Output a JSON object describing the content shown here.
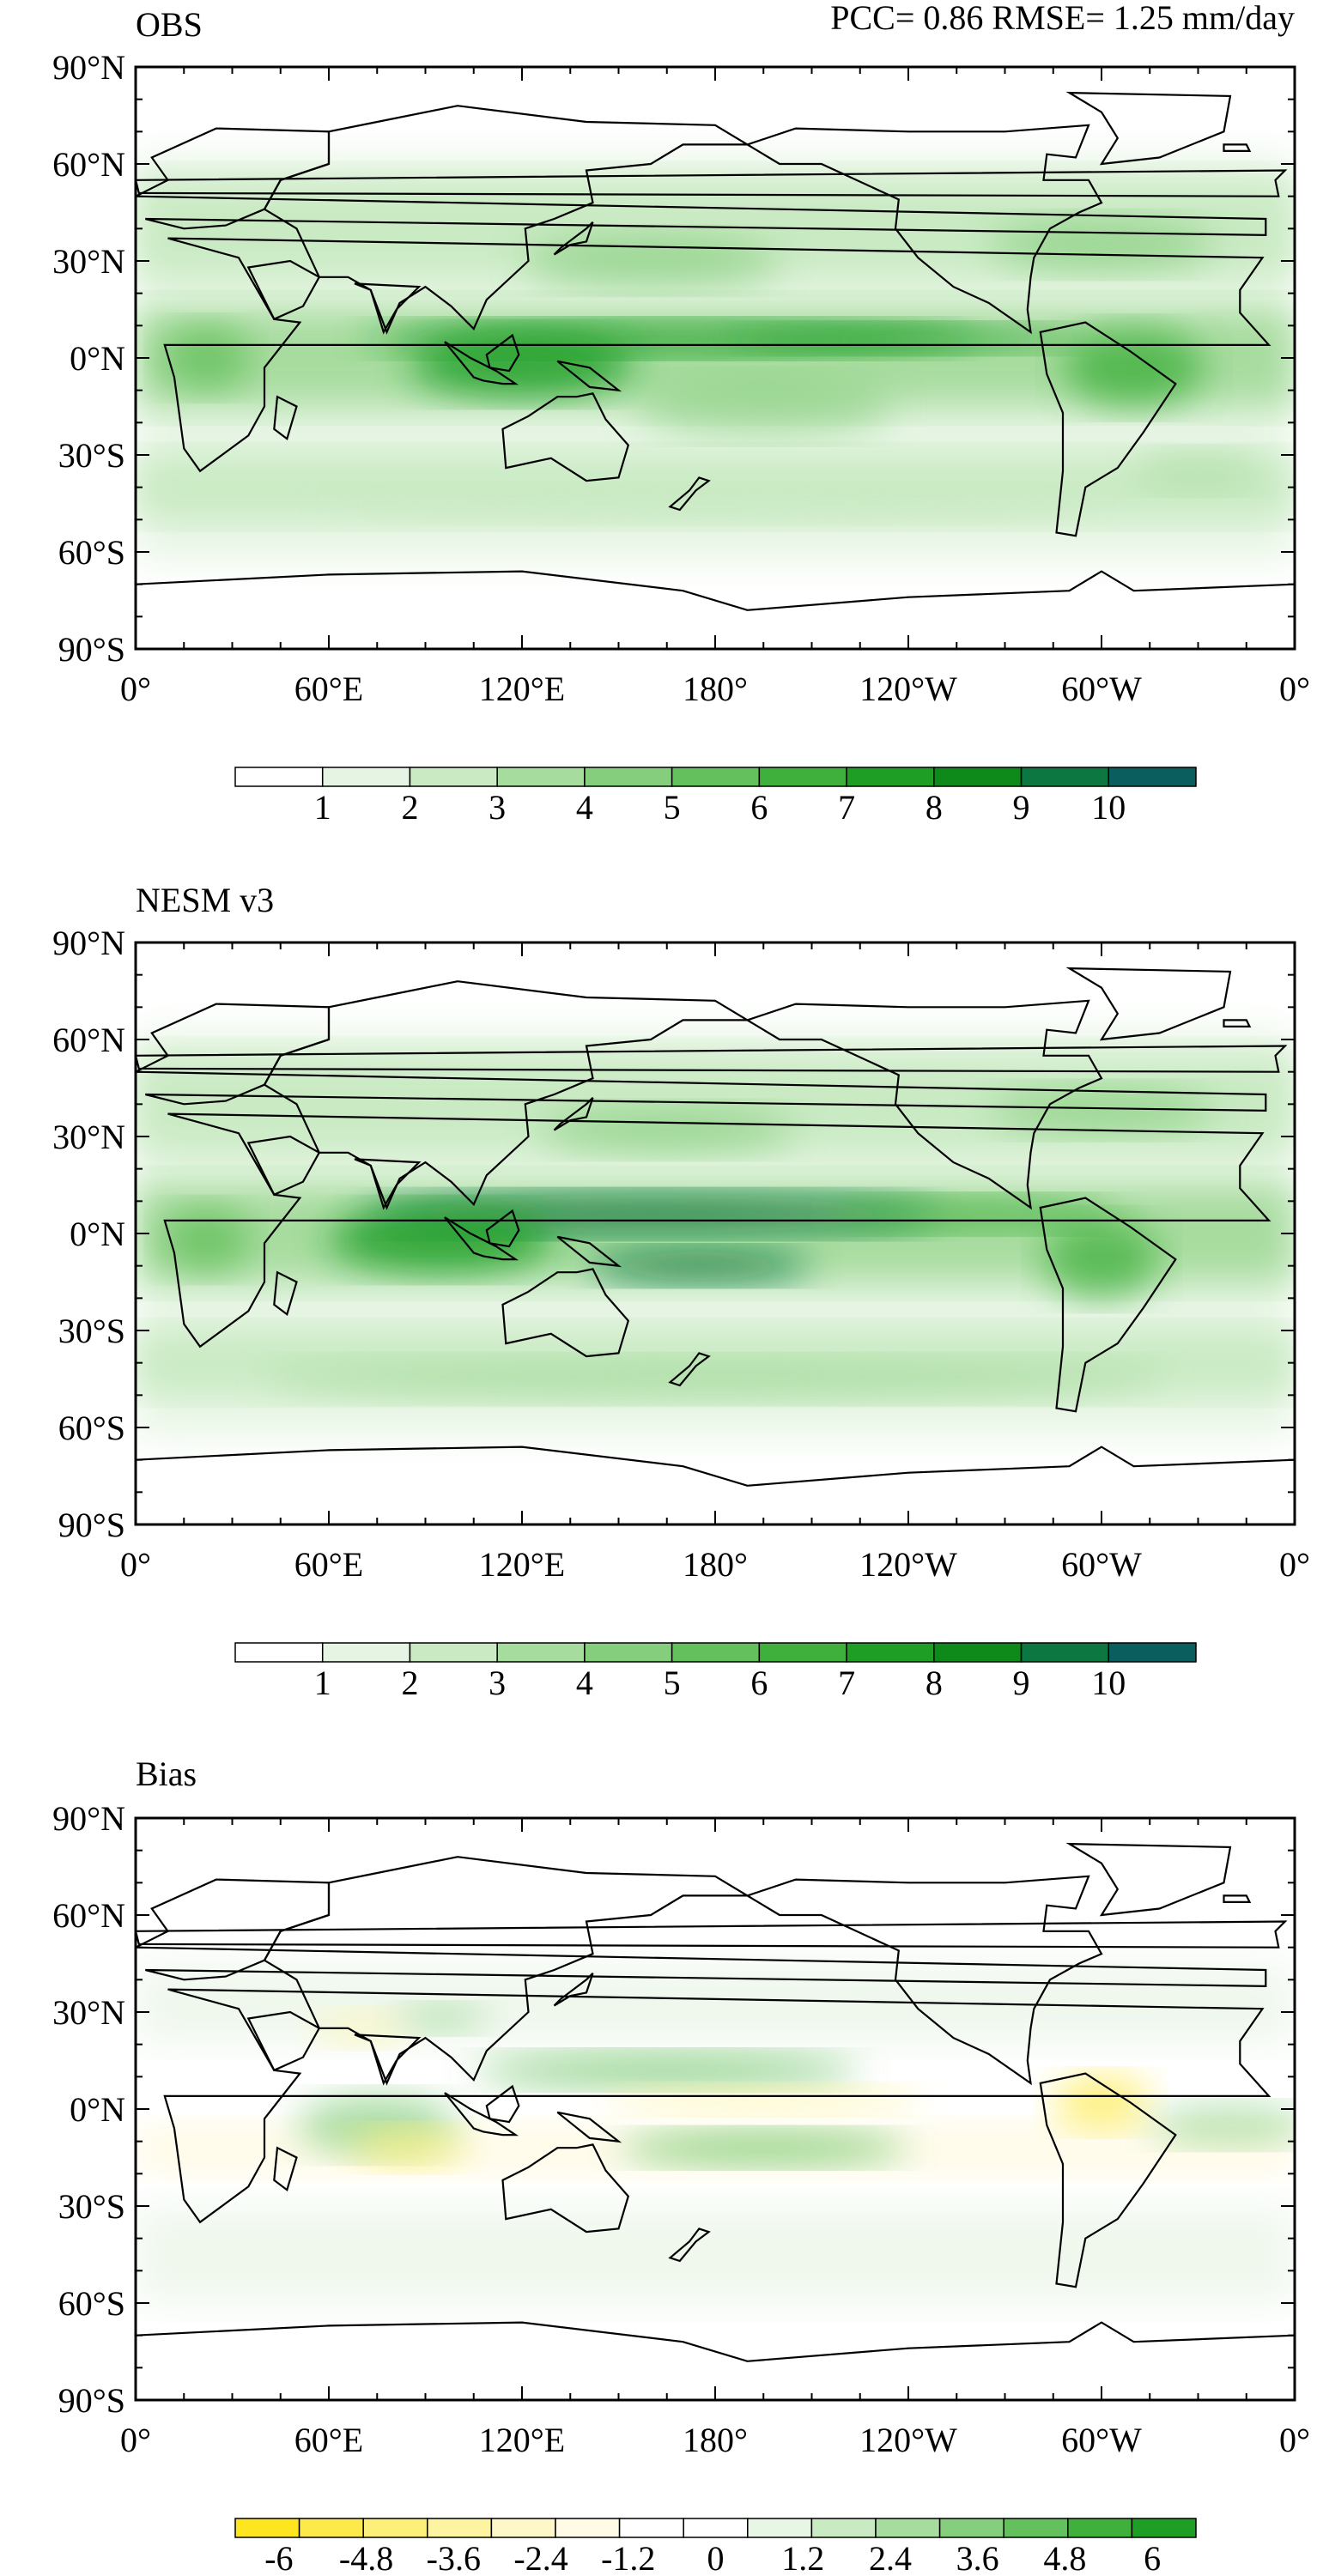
{
  "panels": [
    {
      "id": "obs",
      "title": "OBS",
      "stats": "PCC= 0.86 RMSE= 1.25 mm/day",
      "colorbar_labels": [
        "1",
        "2",
        "3",
        "4",
        "5",
        "6",
        "7",
        "8",
        "9",
        "10"
      ],
      "colorbar_colors": [
        "#ffffff",
        "#e6f5e3",
        "#c9eac3",
        "#a7dc9f",
        "#85ce7d",
        "#63c05c",
        "#3fb03c",
        "#1f9e25",
        "#0e8a1a",
        "#0c7740",
        "#0a5e5e"
      ],
      "blobs": [
        {
          "lon": 165,
          "lat": 6,
          "w": 95,
          "h": 5,
          "c": "#1f9e25",
          "o": 0.85
        },
        {
          "lon": 240,
          "lat": 6,
          "w": 55,
          "h": 4,
          "c": "#1f9e25",
          "o": 0.75
        },
        {
          "lon": 120,
          "lat": -2,
          "w": 35,
          "h": 10,
          "c": "#1f9e25",
          "o": 0.85
        },
        {
          "lon": 310,
          "lat": -3,
          "w": 22,
          "h": 12,
          "c": "#3fb03c",
          "o": 0.8
        },
        {
          "lon": 22,
          "lat": 0,
          "w": 14,
          "h": 10,
          "c": "#63c05c",
          "o": 0.8
        },
        {
          "lon": 160,
          "lat": 30,
          "w": 40,
          "h": 8,
          "c": "#85ce7d",
          "o": 0.7
        },
        {
          "lon": 300,
          "lat": 35,
          "w": 35,
          "h": 8,
          "c": "#85ce7d",
          "o": 0.7
        },
        {
          "lon": 195,
          "lat": -15,
          "w": 40,
          "h": 9,
          "c": "#85ce7d",
          "o": 0.6
        },
        {
          "lon": 330,
          "lat": -35,
          "w": 20,
          "h": 6,
          "c": "#a7dc9f",
          "o": 0.6
        },
        {
          "lon": 180,
          "lat": -45,
          "w": 120,
          "h": 5,
          "c": "#c9eac3",
          "o": 0.8
        }
      ],
      "meta_labels": []
    },
    {
      "id": "nesm",
      "title": "NESM v3",
      "stats": "",
      "colorbar_labels": [
        "1",
        "2",
        "3",
        "4",
        "5",
        "6",
        "7",
        "8",
        "9",
        "10"
      ],
      "colorbar_colors": [
        "#ffffff",
        "#e6f5e3",
        "#c9eac3",
        "#a7dc9f",
        "#85ce7d",
        "#63c05c",
        "#3fb03c",
        "#1f9e25",
        "#0e8a1a",
        "#0c7740",
        "#0a5e5e"
      ],
      "blobs": [
        {
          "lon": 160,
          "lat": 6,
          "w": 90,
          "h": 6,
          "c": "#0c7740",
          "o": 0.85
        },
        {
          "lon": 175,
          "lat": -10,
          "w": 35,
          "h": 5,
          "c": "#0c7740",
          "o": 0.85
        },
        {
          "lon": 95,
          "lat": -2,
          "w": 35,
          "h": 10,
          "c": "#1f9e25",
          "o": 0.85
        },
        {
          "lon": 260,
          "lat": 6,
          "w": 45,
          "h": 5,
          "c": "#3fb03c",
          "o": 0.8
        },
        {
          "lon": 300,
          "lat": -8,
          "w": 18,
          "h": 12,
          "c": "#3fb03c",
          "o": 0.75
        },
        {
          "lon": 22,
          "lat": -2,
          "w": 14,
          "h": 10,
          "c": "#63c05c",
          "o": 0.8
        },
        {
          "lon": 165,
          "lat": 32,
          "w": 40,
          "h": 7,
          "c": "#85ce7d",
          "o": 0.7
        },
        {
          "lon": 300,
          "lat": 38,
          "w": 35,
          "h": 7,
          "c": "#85ce7d",
          "o": 0.7
        },
        {
          "lon": 180,
          "lat": -45,
          "w": 140,
          "h": 6,
          "c": "#a7dc9f",
          "o": 0.8
        }
      ],
      "meta_labels": []
    },
    {
      "id": "bias",
      "title": "Bias",
      "stats": "",
      "colorbar_labels": [
        "-6",
        "-4.8",
        "-3.6",
        "-2.4",
        "-1.2",
        "0",
        "1.2",
        "2.4",
        "3.6",
        "4.8",
        "6"
      ],
      "colorbar_colors": [
        "#fde620",
        "#fdea4a",
        "#fdf07a",
        "#fdf4a2",
        "#fef8c8",
        "#fffbe6",
        "#ffffff",
        "#ffffff",
        "#e8f6e5",
        "#c9eac3",
        "#a7dc9f",
        "#85ce7d",
        "#63c05c",
        "#3fb03c",
        "#1f9e25"
      ],
      "blobs": [
        {
          "lon": 165,
          "lat": 12,
          "w": 60,
          "h": 5,
          "c": "#63c05c",
          "o": 0.75
        },
        {
          "lon": 195,
          "lat": -12,
          "w": 45,
          "h": 5,
          "c": "#63c05c",
          "o": 0.75
        },
        {
          "lon": 75,
          "lat": -5,
          "w": 25,
          "h": 9,
          "c": "#85ce7d",
          "o": 0.7
        },
        {
          "lon": 85,
          "lat": -12,
          "w": 18,
          "h": 6,
          "c": "#fdf07a",
          "o": 0.75
        },
        {
          "lon": 195,
          "lat": 3,
          "w": 50,
          "h": 4,
          "c": "#fdf4a2",
          "o": 0.75
        },
        {
          "lon": 300,
          "lat": 2,
          "w": 15,
          "h": 8,
          "c": "#fdea4a",
          "o": 0.75
        },
        {
          "lon": 340,
          "lat": -5,
          "w": 25,
          "h": 6,
          "c": "#85ce7d",
          "o": 0.6
        },
        {
          "lon": 95,
          "lat": 28,
          "w": 15,
          "h": 4,
          "c": "#85ce7d",
          "o": 0.6
        },
        {
          "lon": 70,
          "lat": 25,
          "w": 15,
          "h": 5,
          "c": "#fdf4a2",
          "o": 0.6
        }
      ],
      "meta_labels": []
    }
  ],
  "axes": {
    "lon_labels": [
      "0°",
      "60°E",
      "120°E",
      "180°",
      "120°W",
      "60°W",
      "0°"
    ],
    "lat_labels": [
      "90°N",
      "60°N",
      "30°N",
      "0°N",
      "30°S",
      "60°S",
      "90°S"
    ]
  }
}
